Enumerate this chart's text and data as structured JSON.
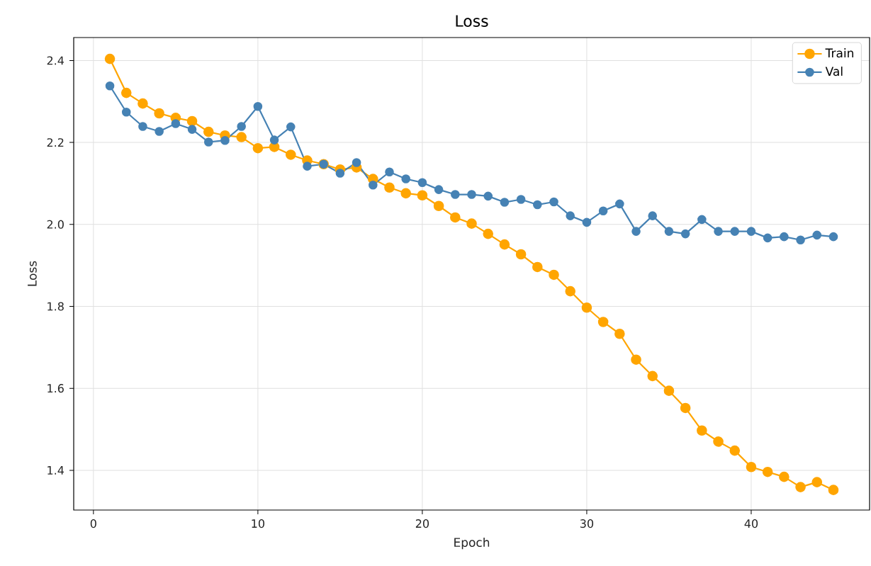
{
  "chart_data": {
    "type": "line",
    "title": "Loss",
    "xlabel": "Epoch",
    "ylabel": "Loss",
    "x": [
      1,
      2,
      3,
      4,
      5,
      6,
      7,
      8,
      9,
      10,
      11,
      12,
      13,
      14,
      15,
      16,
      17,
      18,
      19,
      20,
      21,
      22,
      23,
      24,
      25,
      26,
      27,
      28,
      29,
      30,
      31,
      32,
      33,
      34,
      35,
      36,
      37,
      38,
      39,
      40,
      41,
      42,
      43,
      44,
      45
    ],
    "series": [
      {
        "name": "Train",
        "color": "#ffa500",
        "values": [
          2.404,
          2.321,
          2.295,
          2.271,
          2.26,
          2.252,
          2.226,
          2.217,
          2.213,
          2.186,
          2.189,
          2.17,
          2.156,
          2.147,
          2.134,
          2.139,
          2.111,
          2.09,
          2.076,
          2.071,
          2.045,
          2.017,
          2.002,
          1.977,
          1.951,
          1.927,
          1.896,
          1.877,
          1.837,
          1.797,
          1.762,
          1.733,
          1.67,
          1.63,
          1.594,
          1.552,
          1.497,
          1.47,
          1.448,
          1.408,
          1.396,
          1.384,
          1.359,
          1.371,
          1.352
        ]
      },
      {
        "name": "Val",
        "color": "#4682b4",
        "values": [
          2.338,
          2.274,
          2.239,
          2.227,
          2.246,
          2.232,
          2.201,
          2.205,
          2.239,
          2.288,
          2.206,
          2.238,
          2.142,
          2.147,
          2.125,
          2.151,
          2.096,
          2.128,
          2.111,
          2.102,
          2.085,
          2.073,
          2.073,
          2.069,
          2.054,
          2.061,
          2.048,
          2.055,
          2.021,
          2.005,
          2.033,
          2.05,
          1.983,
          2.021,
          1.983,
          1.977,
          2.012,
          1.983,
          1.983,
          1.983,
          1.967,
          1.97,
          1.962,
          1.974,
          1.97
        ]
      }
    ],
    "xlim": [
      -1.2,
      47.2
    ],
    "ylim": [
      1.303,
      2.456
    ],
    "xticks": [
      0,
      10,
      20,
      30,
      40
    ],
    "yticks": [
      {
        "value": 1.4,
        "label": "1.4"
      },
      {
        "value": 1.6,
        "label": "1.6"
      },
      {
        "value": 1.8,
        "label": "1.8"
      },
      {
        "value": 2.0,
        "label": "2.0"
      },
      {
        "value": 2.2,
        "label": "2.2"
      },
      {
        "value": 2.4,
        "label": "2.4"
      }
    ],
    "grid": true,
    "legend": "top right",
    "marker": "circle",
    "line_style": "solid"
  }
}
